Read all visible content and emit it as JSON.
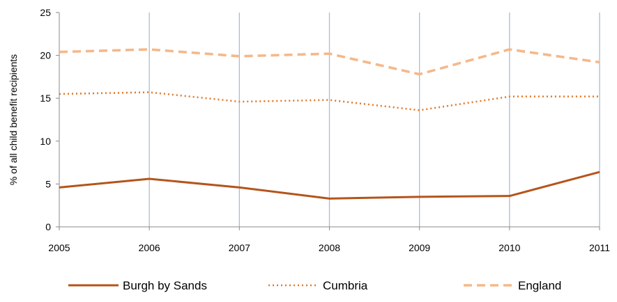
{
  "chart_data": {
    "type": "line",
    "title": "",
    "xlabel": "",
    "ylabel": "% of all child benefit recipients",
    "categories": [
      "2005",
      "2006",
      "2007",
      "2008",
      "2009",
      "2010",
      "2011"
    ],
    "ylim": [
      0,
      25
    ],
    "yticks": [
      0,
      5,
      10,
      15,
      20,
      25
    ],
    "grid": "vertical",
    "legend_position": "bottom",
    "series": [
      {
        "name": "Burgh by Sands",
        "values": [
          4.6,
          5.6,
          4.6,
          3.3,
          3.5,
          3.6,
          6.4
        ],
        "color": "#b5541b",
        "style": "solid"
      },
      {
        "name": "Cumbria",
        "values": [
          15.5,
          15.7,
          14.6,
          14.8,
          13.6,
          15.2,
          15.2
        ],
        "color": "#e07a2a",
        "style": "dotted"
      },
      {
        "name": "England",
        "values": [
          20.4,
          20.7,
          19.9,
          20.2,
          17.8,
          20.7,
          19.2
        ],
        "color": "#f5b88a",
        "style": "dashed"
      }
    ]
  }
}
